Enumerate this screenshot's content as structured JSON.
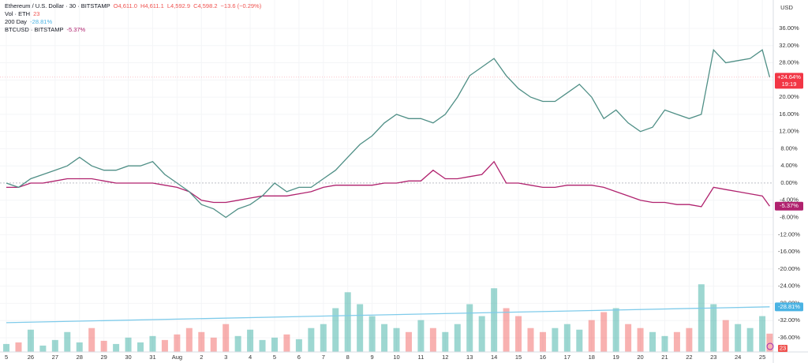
{
  "chart_data": {
    "type": "line",
    "ohlc": [
      "O4,611.0",
      "H4,611.1",
      "L4,592.9",
      "C4,598.2",
      "−13.6 (−0.29%)"
    ],
    "currency": "USD",
    "countdown": "19:19",
    "x": [
      0,
      0.5,
      1,
      1.5,
      2,
      2.5,
      3,
      3.5,
      4,
      4.5,
      5,
      5.5,
      6,
      6.5,
      7,
      7.5,
      8,
      8.5,
      9,
      9.5,
      10,
      10.5,
      11,
      11.5,
      12,
      12.5,
      13,
      13.5,
      14,
      14.5,
      15,
      15.5,
      16,
      16.5,
      17,
      17.5,
      18,
      18.5,
      19,
      19.5,
      20,
      20.5,
      21,
      21.5,
      22,
      22.5,
      23,
      23.5,
      24,
      24.5,
      25,
      25.5,
      26,
      26.5,
      27,
      27.5,
      28,
      28.5,
      29,
      29.5,
      30,
      30.5,
      31,
      31.3
    ],
    "xlim": [
      -0.26,
      31.45
    ],
    "xticks": [
      {
        "value": 0,
        "label": "5"
      },
      {
        "value": 1,
        "label": "26"
      },
      {
        "value": 2,
        "label": "27"
      },
      {
        "value": 3,
        "label": "28"
      },
      {
        "value": 4,
        "label": "29"
      },
      {
        "value": 5,
        "label": "30"
      },
      {
        "value": 6,
        "label": "31"
      },
      {
        "value": 7,
        "label": "Aug"
      },
      {
        "value": 8,
        "label": "2"
      },
      {
        "value": 9,
        "label": "3"
      },
      {
        "value": 10,
        "label": "4"
      },
      {
        "value": 11,
        "label": "5"
      },
      {
        "value": 12,
        "label": "6"
      },
      {
        "value": 13,
        "label": "7"
      },
      {
        "value": 14,
        "label": "8"
      },
      {
        "value": 15,
        "label": "9"
      },
      {
        "value": 16,
        "label": "10"
      },
      {
        "value": 17,
        "label": "11"
      },
      {
        "value": 18,
        "label": "12"
      },
      {
        "value": 19,
        "label": "13"
      },
      {
        "value": 20,
        "label": "14"
      },
      {
        "value": 21,
        "label": "15"
      },
      {
        "value": 22,
        "label": "16"
      },
      {
        "value": 23,
        "label": "17"
      },
      {
        "value": 24,
        "label": "18"
      },
      {
        "value": 25,
        "label": "19"
      },
      {
        "value": 26,
        "label": "20"
      },
      {
        "value": 27,
        "label": "21"
      },
      {
        "value": 28,
        "label": "22"
      },
      {
        "value": 29,
        "label": "23"
      },
      {
        "value": 30,
        "label": "24"
      },
      {
        "value": 31,
        "label": "25"
      }
    ],
    "ylim": [
      -39.31,
      40.04
    ],
    "yticks": [
      {
        "value": 36,
        "label": "36.00%"
      },
      {
        "value": 32,
        "label": "32.00%"
      },
      {
        "value": 28,
        "label": "28.00%"
      },
      {
        "value": 24,
        "label": "24.00%"
      },
      {
        "value": 20,
        "label": "20.00%"
      },
      {
        "value": 16,
        "label": "16.00%"
      },
      {
        "value": 12,
        "label": "12.00%"
      },
      {
        "value": 8,
        "label": "8.00%"
      },
      {
        "value": 4,
        "label": "4.00%"
      },
      {
        "value": 0,
        "label": "0.00%"
      },
      {
        "value": -4,
        "label": "-4.00%"
      },
      {
        "value": -8,
        "label": "-8.00%"
      },
      {
        "value": -12,
        "label": "-12.00%"
      },
      {
        "value": -16,
        "label": "-16.00%"
      },
      {
        "value": -20,
        "label": "-20.00%"
      },
      {
        "value": -24,
        "label": "-24.00%"
      },
      {
        "value": -28,
        "label": "-28.00%"
      },
      {
        "value": -32,
        "label": "-32.00%"
      },
      {
        "value": -36,
        "label": "-36.00%"
      }
    ],
    "grid": true,
    "series": [
      {
        "name": "Ethereum / U.S. Dollar · 30 · BITSTAMP",
        "color": "#4f8f86",
        "values": [
          0,
          -1,
          1,
          2,
          3,
          4,
          6,
          4,
          3,
          3,
          4,
          4,
          5,
          2,
          0,
          -2,
          -5,
          -6,
          -8,
          -6,
          -5,
          -3,
          0,
          -2,
          -1,
          -1,
          1,
          3,
          6,
          9,
          11,
          14,
          16,
          15,
          15,
          14,
          16,
          20,
          25,
          27,
          29,
          25,
          22,
          20,
          19,
          19,
          21,
          23,
          20,
          15,
          17,
          14,
          12,
          13,
          17,
          16,
          15,
          16,
          31,
          28,
          28.5,
          29,
          31,
          24.64
        ],
        "value_labels": [
          null,
          null,
          null,
          null,
          null,
          null,
          null,
          null,
          null,
          null,
          null,
          null,
          null,
          null,
          null,
          null,
          null,
          null,
          null,
          null,
          null,
          null,
          null,
          null,
          null,
          null,
          null,
          null,
          null,
          null,
          null,
          null,
          null,
          null,
          null,
          null,
          null,
          null,
          null,
          null,
          null,
          null,
          null,
          null,
          null,
          null,
          null,
          null,
          null,
          null,
          null,
          null,
          null,
          null,
          null,
          null,
          null,
          null,
          null,
          null,
          null,
          null,
          null,
          "+24.64%"
        ],
        "badge_color": "#f23645"
      },
      {
        "name": "BTCUSD · BITSTAMP",
        "color": "#b0226e",
        "values": [
          -1,
          -1,
          0,
          0,
          0.5,
          1,
          1,
          1,
          0.5,
          0,
          0,
          0,
          0,
          -0.5,
          -1,
          -2,
          -4,
          -4.5,
          -4.5,
          -4,
          -3.5,
          -3,
          -3,
          -3,
          -2.5,
          -2,
          -1,
          -0.5,
          -0.5,
          -0.5,
          -0.5,
          0,
          0,
          0.5,
          0.5,
          3,
          1,
          1,
          1.5,
          2,
          5,
          0,
          0,
          -0.5,
          -1,
          -1,
          -0.5,
          -0.5,
          -0.5,
          -1,
          -2,
          -3,
          -4,
          -4.5,
          -4.5,
          -5,
          -5,
          -5.5,
          -1,
          -1.5,
          -2,
          -2.5,
          -3,
          -5.37
        ],
        "value_labels": [
          null,
          null,
          null,
          null,
          null,
          null,
          null,
          null,
          null,
          null,
          null,
          null,
          null,
          null,
          null,
          null,
          null,
          null,
          null,
          null,
          null,
          null,
          null,
          null,
          null,
          null,
          null,
          null,
          null,
          null,
          null,
          null,
          null,
          null,
          null,
          null,
          null,
          null,
          null,
          null,
          null,
          null,
          null,
          null,
          null,
          null,
          null,
          null,
          null,
          null,
          null,
          null,
          null,
          null,
          null,
          null,
          null,
          null,
          null,
          null,
          null,
          null,
          null,
          "-5.37%"
        ],
        "badge_color": "#b0226e"
      },
      {
        "name": "200 Day",
        "color": "#7fcbea",
        "x": [
          0,
          31.3
        ],
        "values": [
          -32.5,
          -28.81
        ],
        "value_labels": [
          null,
          "-28.81%"
        ],
        "badge_color": "#4bb3e3"
      }
    ],
    "volume": {
      "name": "Vol · ETH",
      "ylim": [
        0,
        110
      ],
      "up_color": "#26a69a",
      "down_color": "#ef5350",
      "values": [
        10,
        12,
        28,
        8,
        15,
        25,
        12,
        30,
        14,
        10,
        18,
        12,
        20,
        15,
        22,
        30,
        25,
        18,
        35,
        20,
        28,
        15,
        18,
        22,
        16,
        30,
        35,
        55,
        75,
        60,
        45,
        35,
        30,
        25,
        40,
        30,
        25,
        35,
        60,
        45,
        80,
        55,
        45,
        30,
        25,
        30,
        35,
        28,
        40,
        50,
        55,
        35,
        30,
        25,
        20,
        25,
        30,
        85,
        60,
        40,
        35,
        30,
        45,
        23
      ]
    }
  }
}
